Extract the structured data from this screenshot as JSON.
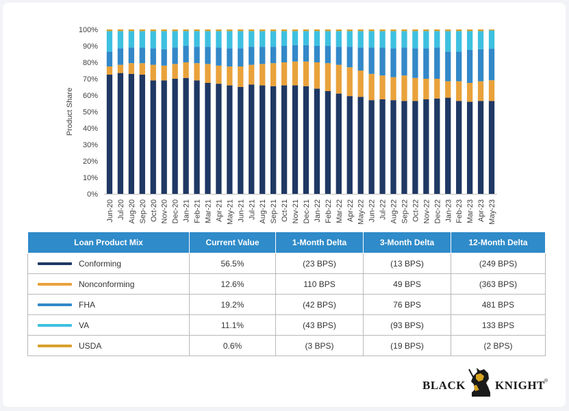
{
  "logo": {
    "left": "BLACK",
    "right": "KNIGHT",
    "mark": "®"
  },
  "chart_data": {
    "type": "bar",
    "stacked": true,
    "ylabel": "Product Share",
    "xlabel": "",
    "ylim": [
      0,
      100
    ],
    "yticks": [
      "0%",
      "10%",
      "20%",
      "30%",
      "40%",
      "50%",
      "60%",
      "70%",
      "80%",
      "90%",
      "100%"
    ],
    "grid": false,
    "categories": [
      "Jun-20",
      "Jul-20",
      "Aug-20",
      "Sep-20",
      "Oct-20",
      "Nov-20",
      "Dec-20",
      "Jan-21",
      "Feb-21",
      "Mar-21",
      "Apr-21",
      "May-21",
      "Jun-21",
      "Jul-21",
      "Aug-21",
      "Sep-21",
      "Oct-21",
      "Nov-21",
      "Dec-21",
      "Jan-22",
      "Feb-22",
      "Mar-22",
      "Apr-22",
      "May-22",
      "Jun-22",
      "Jul-22",
      "Aug-22",
      "Sep-22",
      "Oct-22",
      "Nov-22",
      "Dec-22",
      "Jan-23",
      "Feb-23",
      "Mar-23",
      "Apr-23",
      "May-23"
    ],
    "series": [
      {
        "name": "Conforming",
        "color": "#1f3864",
        "values": [
          72.5,
          73.5,
          73,
          72.5,
          69,
          69,
          70,
          70.5,
          69,
          67.5,
          67,
          66,
          65,
          66.5,
          66,
          65.5,
          66,
          66,
          65.5,
          64,
          62.5,
          61,
          59.5,
          59,
          57,
          57.5,
          57,
          56.5,
          56.5,
          57.5,
          58,
          58.5,
          56.5,
          56,
          56.5,
          56.5
        ]
      },
      {
        "name": "Nonconforming",
        "color": "#e9a23b",
        "values": [
          5,
          5,
          6.5,
          7,
          9.5,
          9,
          9,
          9.5,
          10.5,
          11.5,
          11,
          11.5,
          12.5,
          12,
          13,
          14,
          14,
          14.5,
          15,
          16,
          17,
          17.5,
          17.5,
          16,
          16,
          14.5,
          14,
          15.5,
          14,
          12.5,
          12,
          10,
          12,
          11.5,
          12,
          12.6
        ]
      },
      {
        "name": "FHA",
        "color": "#3388c8",
        "values": [
          9,
          10,
          9.5,
          9.5,
          10,
          10,
          10,
          10,
          10,
          10.5,
          11,
          11,
          11,
          11,
          10.5,
          10,
          10,
          10,
          10,
          10,
          10.5,
          11,
          12.5,
          14,
          16,
          17,
          17.5,
          17,
          18,
          18.5,
          19,
          18,
          18,
          20,
          19.5,
          19.2
        ]
      },
      {
        "name": "VA",
        "color": "#3ec0e0",
        "values": [
          12.5,
          10.5,
          10,
          10,
          10.5,
          11,
          10,
          9,
          9.5,
          9.5,
          10,
          10.5,
          10.5,
          9.5,
          9.5,
          9.5,
          9,
          8.5,
          8.5,
          9,
          9,
          9.5,
          9.5,
          10,
          10,
          10,
          10.5,
          10,
          10.5,
          10.5,
          10,
          12.5,
          12.5,
          11.5,
          11,
          11.1
        ]
      },
      {
        "name": "USDA",
        "color": "#d9a12b",
        "values": [
          1,
          1,
          1,
          1,
          1,
          1,
          1,
          1,
          1,
          1,
          1,
          1,
          1,
          1,
          1,
          1,
          1,
          1,
          1,
          1,
          1,
          1,
          1,
          1,
          1,
          1,
          1,
          1,
          1,
          1,
          1,
          1,
          1,
          1,
          1,
          0.6
        ]
      }
    ]
  },
  "table": {
    "headers": [
      "Loan Product Mix",
      "Current Value",
      "1-Month Delta",
      "3-Month Delta",
      "12-Month Delta"
    ],
    "rows": [
      {
        "product": "Conforming",
        "color": "#1f3864",
        "current": "56.5%",
        "d1": "(23 BPS)",
        "d3": "(13 BPS)",
        "d12": "(249 BPS)"
      },
      {
        "product": "Nonconforming",
        "color": "#e9a23b",
        "current": "12.6%",
        "d1": "110 BPS",
        "d3": "49 BPS",
        "d12": "(363 BPS)"
      },
      {
        "product": "FHA",
        "color": "#3388c8",
        "current": "19.2%",
        "d1": "(42 BPS)",
        "d3": "76 BPS",
        "d12": "481 BPS"
      },
      {
        "product": "VA",
        "color": "#3ec0e0",
        "current": "11.1%",
        "d1": "(43 BPS)",
        "d3": "(93 BPS)",
        "d12": "133 BPS"
      },
      {
        "product": "USDA",
        "color": "#d9a12b",
        "current": "0.6%",
        "d1": "(3 BPS)",
        "d3": "(19 BPS)",
        "d12": "(2 BPS)"
      }
    ]
  }
}
